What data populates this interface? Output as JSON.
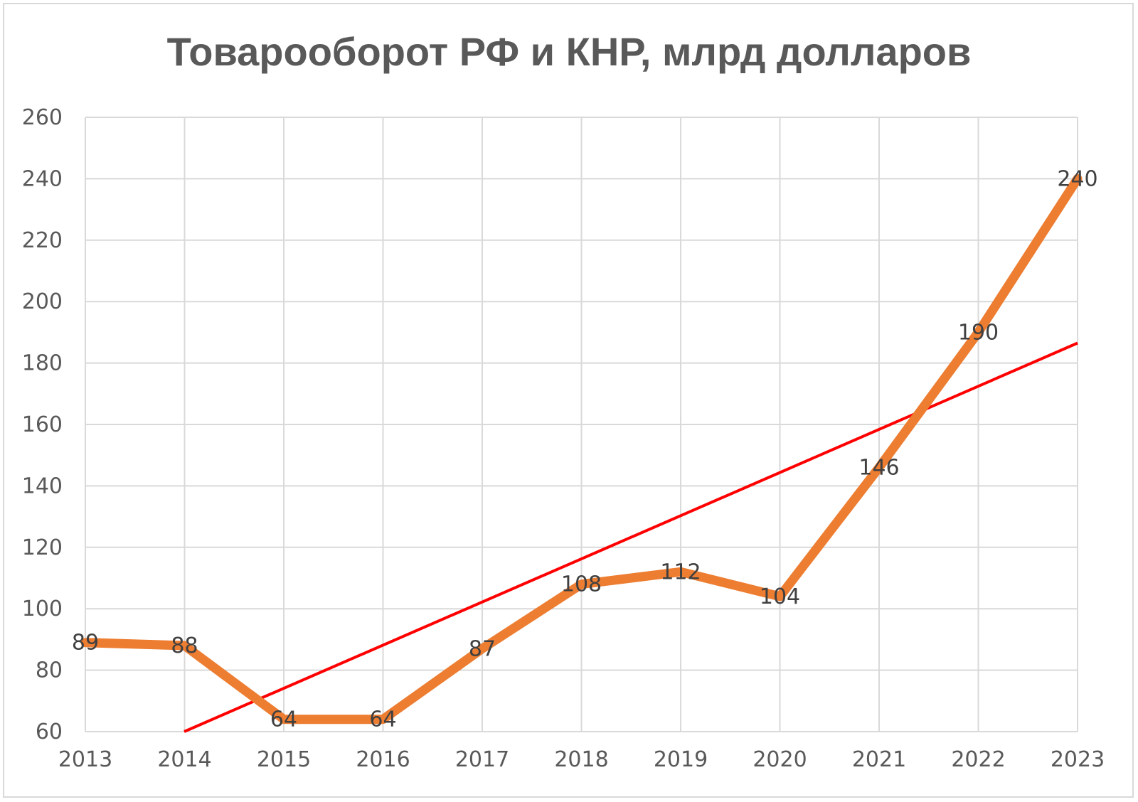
{
  "chart_data": {
    "type": "line",
    "title": "Товарооборот РФ и КНР, млрд долларов",
    "xlabel": "",
    "ylabel": "",
    "categories": [
      "2013",
      "2014",
      "2015",
      "2016",
      "2017",
      "2018",
      "2019",
      "2020",
      "2021",
      "2022",
      "2023"
    ],
    "series": [
      {
        "values": [
          89,
          88,
          64,
          64,
          87,
          108,
          112,
          104,
          146,
          190,
          240
        ],
        "color": "#ed7d31",
        "data_labels": true
      }
    ],
    "trendline": {
      "type": "linear",
      "color": "#ff0000",
      "start_value": 46,
      "end_value": 186.5
    },
    "ylim": [
      60,
      260
    ],
    "yticks": [
      60,
      80,
      100,
      120,
      140,
      160,
      180,
      200,
      220,
      240,
      260
    ],
    "grid": "vertical and horizontal",
    "legend": "none"
  }
}
